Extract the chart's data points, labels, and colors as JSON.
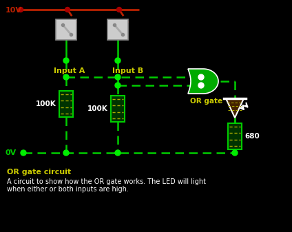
{
  "bg_color": "#000000",
  "wire_green": "#00cc00",
  "wire_red": "#bb2200",
  "node_green": "#00ee00",
  "node_red": "#aa0000",
  "label_yellow": "#cccc00",
  "text_white": "#ffffff",
  "resistor_border": "#00cc00",
  "resistor_fill": "#003300",
  "resistor_dash": "#aaaa00",
  "switch_fill": "#cccccc",
  "switch_border": "#888888",
  "or_gate_fill": "#00aa00",
  "or_gate_border": "#ffffff",
  "led_fill": "#442200",
  "led_border": "#ffffff",
  "title": "OR gate circuit",
  "desc_line1": "A circuit to show how the OR gate works. The LED will light",
  "desc_line2": "when either or both inputs are high."
}
